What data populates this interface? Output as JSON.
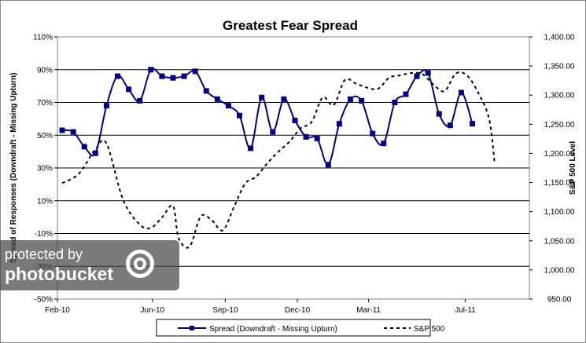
{
  "chart_data": {
    "type": "line",
    "title": "Greatest Fear Spread",
    "ylabel": "Spread of Responses (Downdraft - Missing Upturn)",
    "y2label": "S&P 500 Level",
    "x_ticks": [
      "Feb-10",
      "Jun-10",
      "Sep-10",
      "Dec-10",
      "Mar-11",
      "Jul-11"
    ],
    "y_ticks": [
      "110%",
      "90%",
      "70%",
      "50%",
      "30%",
      "10%",
      "-10%",
      "-30%",
      "-50%"
    ],
    "y2_ticks": [
      "1,400.00",
      "1,350.00",
      "1,300.00",
      "1,250.00",
      "1,200.00",
      "1,150.00",
      "1,100.00",
      "1,050.00",
      "1,000.00",
      "950.00"
    ],
    "ylim": [
      -50,
      110
    ],
    "y2lim": [
      950,
      1400
    ],
    "grid": "horizontal",
    "legend_position": "bottom",
    "series": [
      {
        "name": "Spread (Downdraft - Missing Upturn)",
        "axis": "left",
        "style": "solid-with-square-markers",
        "color": "#000080",
        "points": [
          [
            "2010-02-07",
            53
          ],
          [
            "2010-02-21",
            52
          ],
          [
            "2010-03-07",
            43
          ],
          [
            "2010-03-21",
            39
          ],
          [
            "2010-04-04",
            68
          ],
          [
            "2010-04-18",
            86
          ],
          [
            "2010-05-02",
            78
          ],
          [
            "2010-05-16",
            71
          ],
          [
            "2010-05-30",
            90
          ],
          [
            "2010-06-13",
            86
          ],
          [
            "2010-06-27",
            85
          ],
          [
            "2010-07-11",
            86
          ],
          [
            "2010-07-25",
            89
          ],
          [
            "2010-08-08",
            77
          ],
          [
            "2010-08-22",
            72
          ],
          [
            "2010-09-05",
            68
          ],
          [
            "2010-09-19",
            62
          ],
          [
            "2010-10-03",
            42
          ],
          [
            "2010-10-17",
            73
          ],
          [
            "2010-10-31",
            52
          ],
          [
            "2010-11-14",
            72
          ],
          [
            "2010-11-28",
            59
          ],
          [
            "2010-12-12",
            49
          ],
          [
            "2010-12-26",
            48
          ],
          [
            "2011-01-09",
            32
          ],
          [
            "2011-01-23",
            57
          ],
          [
            "2011-02-06",
            72
          ],
          [
            "2011-02-20",
            71
          ],
          [
            "2011-03-06",
            51
          ],
          [
            "2011-03-20",
            45
          ],
          [
            "2011-04-03",
            70
          ],
          [
            "2011-04-17",
            75
          ],
          [
            "2011-05-01",
            86
          ],
          [
            "2011-05-15",
            88
          ],
          [
            "2011-05-29",
            63
          ],
          [
            "2011-06-12",
            56
          ],
          [
            "2011-06-26",
            76
          ],
          [
            "2011-07-10",
            57
          ]
        ]
      },
      {
        "name": "S&P 500",
        "axis": "right",
        "style": "dashed",
        "color": "#000000",
        "points": [
          [
            "2010-02-07",
            1149
          ],
          [
            "2010-02-28",
            1165
          ],
          [
            "2010-03-21",
            1207
          ],
          [
            "2010-04-04",
            1217
          ],
          [
            "2010-04-25",
            1120
          ],
          [
            "2010-05-16",
            1078
          ],
          [
            "2010-05-30",
            1072
          ],
          [
            "2010-06-13",
            1090
          ],
          [
            "2010-06-27",
            1110
          ],
          [
            "2010-07-04",
            1055
          ],
          [
            "2010-07-18",
            1040
          ],
          [
            "2010-08-01",
            1092
          ],
          [
            "2010-08-15",
            1085
          ],
          [
            "2010-08-29",
            1068
          ],
          [
            "2010-09-12",
            1108
          ],
          [
            "2010-09-26",
            1148
          ],
          [
            "2010-10-10",
            1160
          ],
          [
            "2010-10-24",
            1183
          ],
          [
            "2010-11-07",
            1203
          ],
          [
            "2010-11-21",
            1220
          ],
          [
            "2010-12-05",
            1243
          ],
          [
            "2010-12-19",
            1254
          ],
          [
            "2011-01-02",
            1296
          ],
          [
            "2011-01-16",
            1283
          ],
          [
            "2011-01-30",
            1326
          ],
          [
            "2011-02-13",
            1320
          ],
          [
            "2011-02-27",
            1313
          ],
          [
            "2011-03-13",
            1311
          ],
          [
            "2011-03-27",
            1330
          ],
          [
            "2011-04-10",
            1334
          ],
          [
            "2011-04-24",
            1338
          ],
          [
            "2011-05-08",
            1336
          ],
          [
            "2011-05-22",
            1318
          ],
          [
            "2011-06-05",
            1307
          ],
          [
            "2011-06-19",
            1337
          ],
          [
            "2011-07-03",
            1334
          ],
          [
            "2011-07-17",
            1305
          ],
          [
            "2011-07-31",
            1260
          ],
          [
            "2011-08-07",
            1186
          ]
        ]
      }
    ]
  },
  "watermark": {
    "line1": "protected by",
    "line2": "photobucket"
  }
}
